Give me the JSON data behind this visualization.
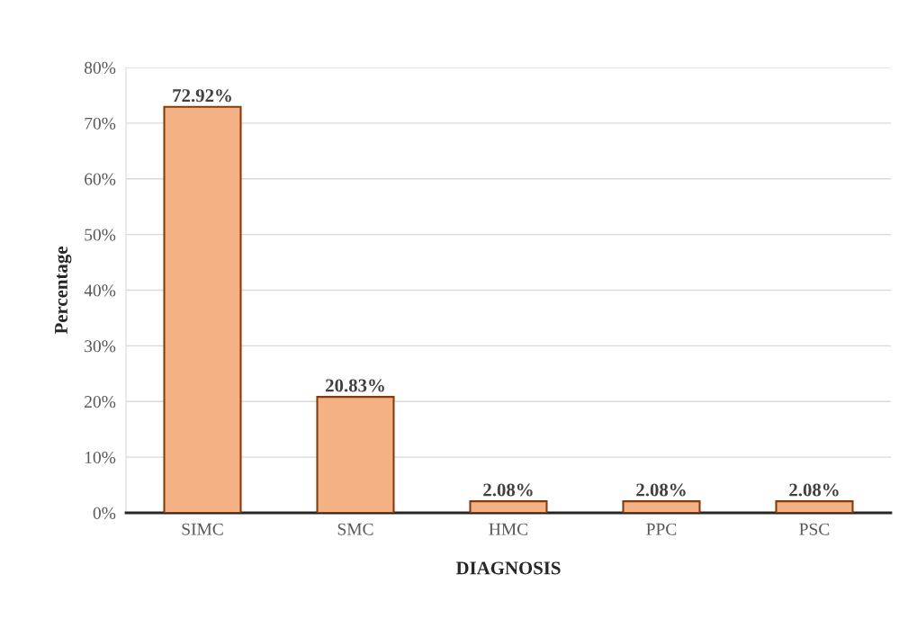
{
  "chart_data": {
    "type": "bar",
    "xlabel": "DIAGNOSIS",
    "ylabel": "Percentage",
    "categories": [
      "SIMC",
      "SMC",
      "HMC",
      "PPC",
      "PSC"
    ],
    "values": [
      72.92,
      20.83,
      2.08,
      2.08,
      2.08
    ],
    "value_labels": [
      "72.92%",
      "20.83%",
      "2.08%",
      "2.08%",
      "2.08%"
    ],
    "color": "#f4b183",
    "ylim": [
      0,
      80
    ],
    "yticks": [
      {
        "value": 0,
        "label": "0%"
      },
      {
        "value": 10,
        "label": "10%"
      },
      {
        "value": 20,
        "label": "20%"
      },
      {
        "value": 30,
        "label": "30%"
      },
      {
        "value": 40,
        "label": "40%"
      },
      {
        "value": 50,
        "label": "50%"
      },
      {
        "value": 60,
        "label": "60%"
      },
      {
        "value": 70,
        "label": "70%"
      },
      {
        "value": 80,
        "label": "80%"
      }
    ],
    "grid": "y",
    "legend": false
  }
}
